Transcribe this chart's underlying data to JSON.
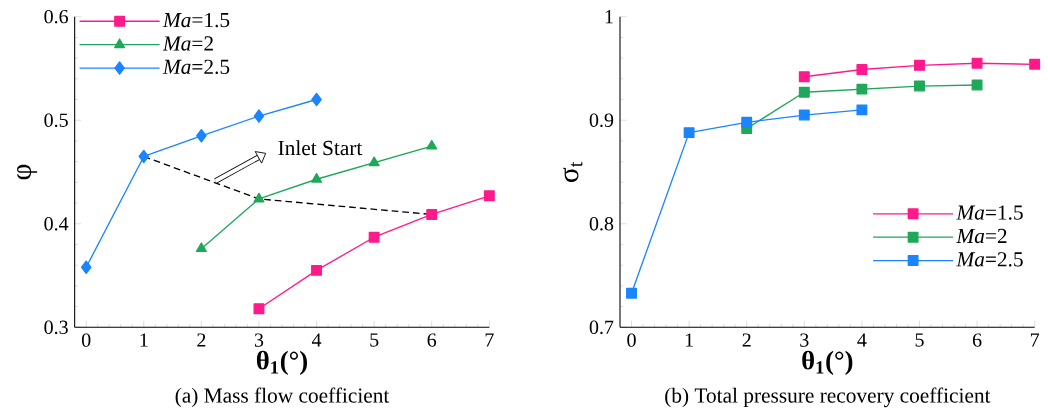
{
  "chart_data": [
    {
      "type": "line",
      "title": "(a) Mass flow coefficient",
      "xlabel": "**θ$_{1}$(°)**",
      "ylabel": "φ",
      "xlim": [
        -0.2,
        7
      ],
      "ylim": [
        0.3,
        0.6
      ],
      "xticks": [
        0,
        1,
        2,
        3,
        4,
        5,
        6,
        7
      ],
      "yticks": [
        0.3,
        0.4,
        0.5,
        0.6
      ],
      "legend": "top left",
      "grid": false,
      "annotations": [
        {
          "text": "Inlet Start",
          "x": 2.2,
          "y": 0.44
        }
      ],
      "series": [
        {
          "name": "*Ma*=1.5",
          "color": "#ff1a8c",
          "marker": "square",
          "x": [
            3,
            4,
            5,
            6,
            7
          ],
          "values": [
            0.318,
            0.355,
            0.387,
            0.409,
            0.427
          ]
        },
        {
          "name": "*Ma*=2",
          "color": "#1fa85a",
          "marker": "triangle",
          "x": [
            2,
            3,
            4,
            5,
            6
          ],
          "values": [
            0.376,
            0.424,
            0.443,
            0.459,
            0.475
          ]
        },
        {
          "name": "*Ma*=2.5",
          "color": "#1a85ff",
          "marker": "diamond",
          "x": [
            0,
            1,
            2,
            3,
            4
          ],
          "values": [
            0.358,
            0.465,
            0.485,
            0.504,
            0.52
          ]
        },
        {
          "color": "#000000",
          "marker": "none",
          "line_style": "dashed",
          "x": [
            1,
            3,
            6
          ],
          "values": [
            0.465,
            0.424,
            0.409
          ]
        }
      ]
    },
    {
      "type": "line",
      "title": "(b) Total pressure recovery coefficient",
      "xlabel": "**θ$_{1}$(°)**",
      "ylabel": "σ$_{t}$",
      "xlim": [
        -0.2,
        7
      ],
      "ylim": [
        0.7,
        1
      ],
      "xticks": [
        0,
        1,
        2,
        3,
        4,
        5,
        6,
        7
      ],
      "yticks": [
        0.7,
        0.8,
        0.9,
        1
      ],
      "legend": "bottom right",
      "grid": false,
      "series": [
        {
          "name": "*Ma*=1.5",
          "color": "#ff1a8c",
          "marker": "square",
          "x": [
            3,
            4,
            5,
            6,
            7
          ],
          "values": [
            0.942,
            0.949,
            0.953,
            0.955,
            0.954
          ]
        },
        {
          "name": "*Ma*=2",
          "color": "#1fa85a",
          "marker": "square",
          "x": [
            2,
            3,
            4,
            5,
            6
          ],
          "values": [
            0.892,
            0.927,
            0.93,
            0.933,
            0.934
          ]
        },
        {
          "name": "*Ma*=2.5",
          "color": "#1a85ff",
          "marker": "square",
          "x": [
            0,
            1,
            2,
            3,
            4
          ],
          "values": [
            0.733,
            0.888,
            0.898,
            0.905,
            0.91
          ]
        }
      ]
    }
  ]
}
